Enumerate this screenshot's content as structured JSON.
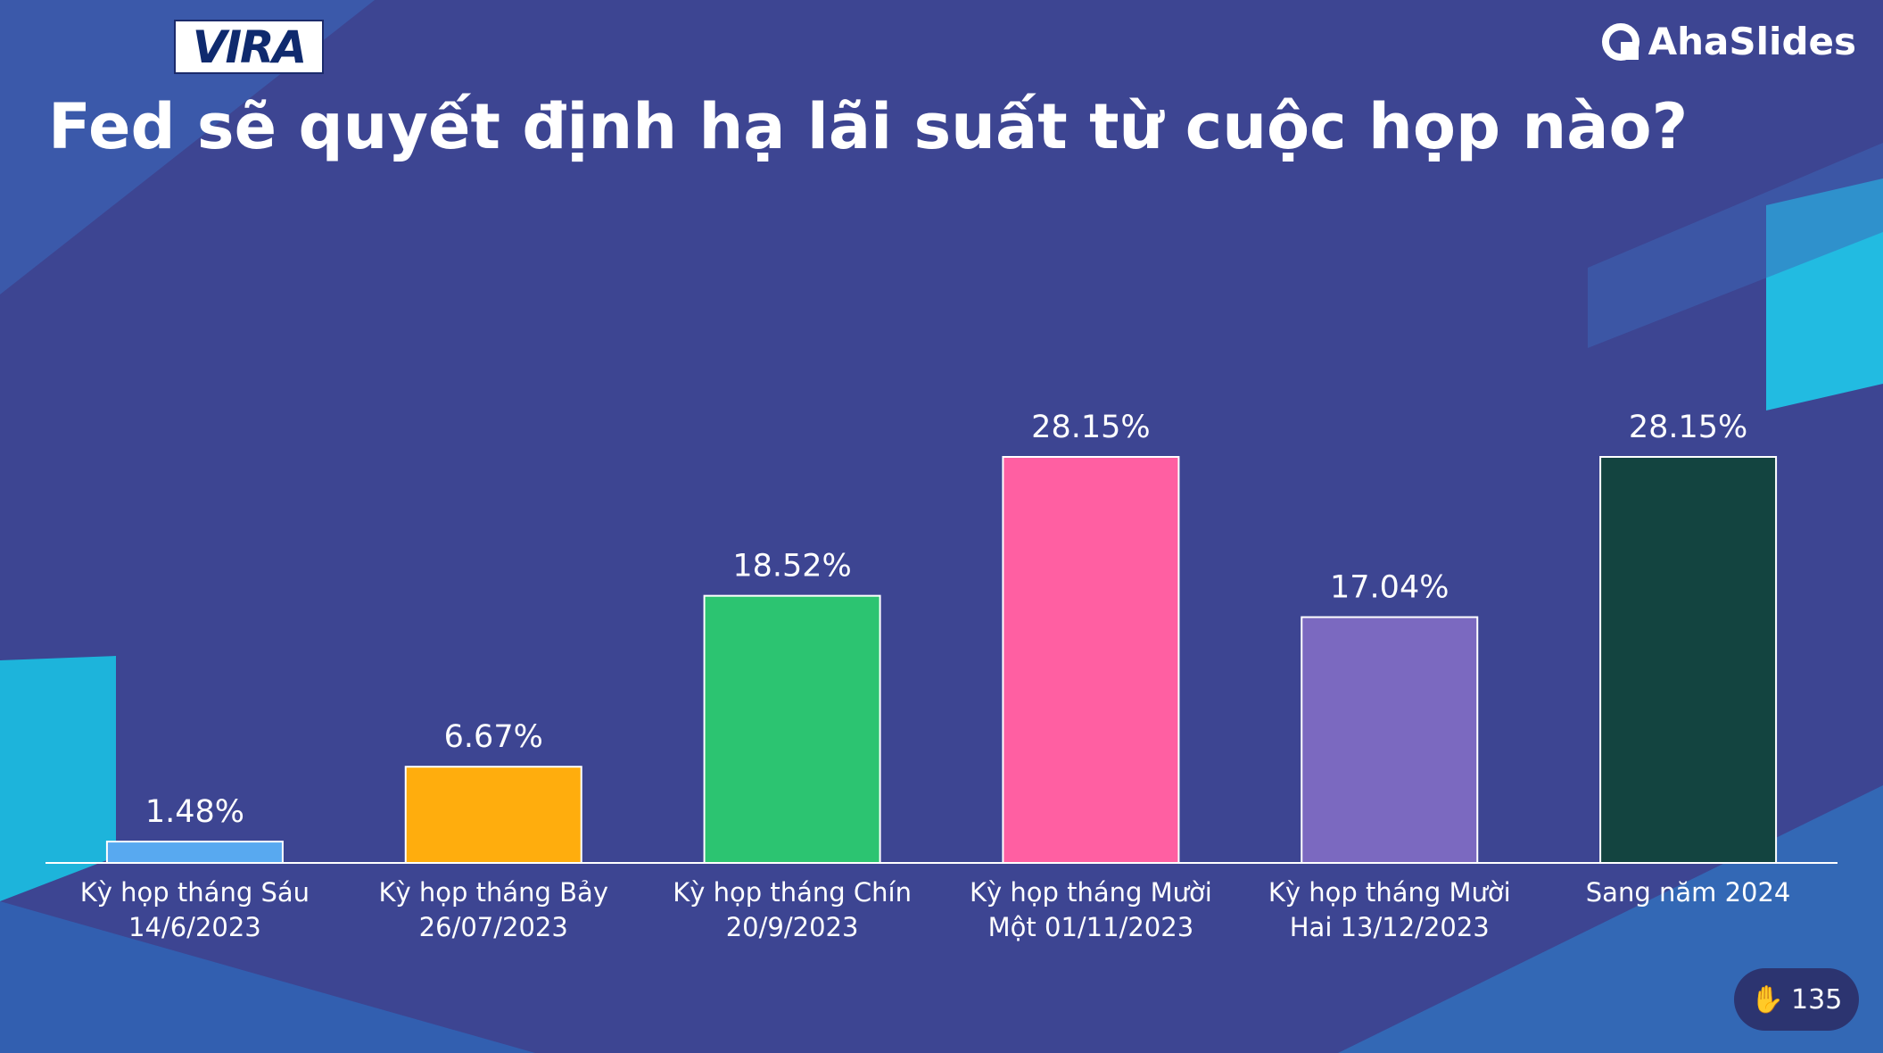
{
  "logo": "VIRA",
  "brand": "AhaSlides",
  "response_count": "135",
  "chart_data": {
    "type": "bar",
    "title": "Fed sẽ quyết định hạ lãi suất từ cuộc họp nào?",
    "categories": [
      "Kỳ họp tháng Sáu 14/6/2023",
      "Kỳ họp tháng Bảy 26/07/2023",
      "Kỳ họp tháng Chín 20/9/2023",
      "Kỳ họp tháng Mười Một 01/11/2023",
      "Kỳ họp tháng Mười Hai 13/12/2023",
      "Sang năm 2024"
    ],
    "values": [
      1.48,
      6.67,
      18.52,
      28.15,
      17.04,
      28.15
    ],
    "value_labels": [
      "1.48%",
      "6.67%",
      "18.52%",
      "28.15%",
      "17.04%",
      "28.15%"
    ],
    "colors": [
      "#58a9f0",
      "#ffad0d",
      "#2cc471",
      "#ff5fa2",
      "#7b69c0",
      "#134440"
    ]
  }
}
